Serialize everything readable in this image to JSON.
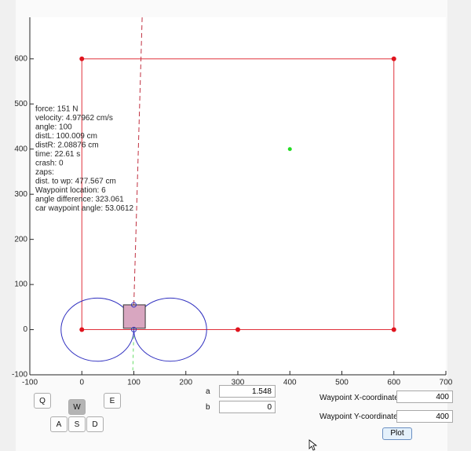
{
  "plot": {
    "xlim": [
      -100,
      700
    ],
    "ylim": [
      -100,
      692
    ],
    "xticks": [
      -100,
      0,
      100,
      200,
      300,
      400,
      500,
      600,
      700
    ],
    "yticks": [
      -100,
      0,
      100,
      200,
      300,
      400,
      500,
      600
    ],
    "boundary": {
      "color": "#e0303a",
      "x": [
        0,
        600,
        600,
        0,
        0
      ],
      "y": [
        0,
        0,
        600,
        600,
        0
      ]
    },
    "waypoints": {
      "color": "#e0141e",
      "x": [
        0,
        300,
        600,
        600,
        0
      ],
      "y": [
        0,
        0,
        0,
        600,
        600
      ]
    },
    "target": {
      "color": "#22dd22",
      "x": 400,
      "y": 400
    },
    "car": {
      "color": "#d8a6c0",
      "x": 80,
      "y": 3,
      "width": 42,
      "height": 52
    },
    "circles": [
      {
        "x": 30,
        "y": 0,
        "r": 70
      },
      {
        "x": 170,
        "y": 0,
        "r": 70
      }
    ],
    "circle_color": "#3030c0",
    "heading": {
      "color": "#c03040",
      "x": [
        100,
        116
      ],
      "y": [
        55,
        692
      ]
    },
    "sensor": {
      "color": "#66dd66",
      "x": [
        100,
        98
      ],
      "y": [
        0,
        -90
      ]
    },
    "info": [
      "force: 151 N",
      "velocity: 4.97962 cm/s",
      "angle: 100",
      "distL: 100.009  cm",
      "distR: 2.08876 cm",
      "time: 22.61 s",
      "crash: 0",
      "zaps:",
      "dist. to wp: 477.567 cm",
      "Waypoint location: 6",
      "angle difference: 323.061",
      "car waypoint angle: 53.0612"
    ]
  },
  "controls": {
    "keys": [
      "Q",
      "W",
      "E",
      "A",
      "S",
      "D"
    ],
    "a_label": "a",
    "a_value": 1.548,
    "b_label": "b",
    "b_value": 0,
    "wx_label": "Waypoint X-coordinate",
    "wx_value": 400,
    "wy_label": "Waypoint Y-coordinate",
    "wy_value": 400,
    "plot_button": "Plot"
  }
}
